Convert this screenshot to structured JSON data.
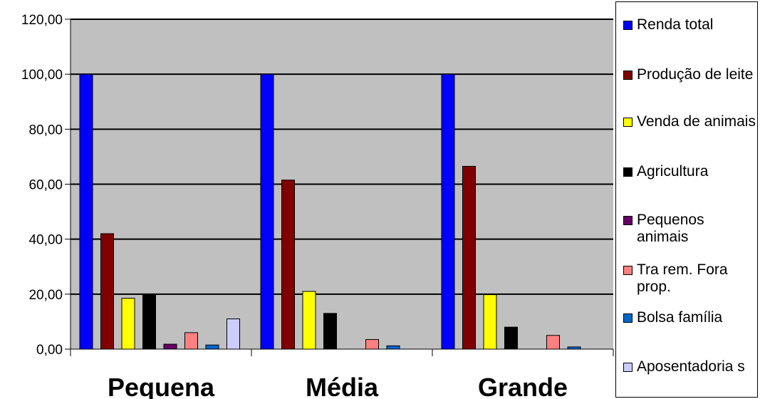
{
  "chart_data": {
    "type": "bar",
    "categories": [
      "Pequena",
      "Média",
      "Grande"
    ],
    "series": [
      {
        "name": "Renda total",
        "color": "#0000FF",
        "values": [
          100.0,
          100.0,
          100.0
        ]
      },
      {
        "name": "Produção de leite",
        "color": "#800000",
        "values": [
          42.0,
          61.5,
          66.5
        ]
      },
      {
        "name": "Venda de animais",
        "color": "#FFFF00",
        "values": [
          18.5,
          21.0,
          19.8
        ]
      },
      {
        "name": "Agricultura",
        "color": "#000000",
        "values": [
          20.0,
          13.0,
          8.0
        ]
      },
      {
        "name": "Pequenos animais",
        "color": "#660066",
        "values": [
          1.8,
          0.0,
          0.0
        ]
      },
      {
        "name": "Tra rem. Fora prop.",
        "color": "#FF8080",
        "values": [
          6.0,
          3.5,
          5.0
        ]
      },
      {
        "name": "Bolsa família",
        "color": "#0066CC",
        "values": [
          1.5,
          1.2,
          0.8
        ]
      },
      {
        "name": "Aposentadorias",
        "color": "#CCCCFF",
        "values": [
          11.0,
          0.0,
          0.0
        ]
      }
    ],
    "yticks": [
      "0,00",
      "20,00",
      "40,00",
      "60,00",
      "80,00",
      "100,00",
      "120,00"
    ],
    "ylim": [
      0,
      120
    ],
    "ytick_step": 20,
    "grid": true,
    "plot_background": "#C0C0C0",
    "legend_position": "right"
  },
  "legend_items": [
    {
      "label": "Renda total"
    },
    {
      "label": "Produção de leite"
    },
    {
      "label": "Venda de animais"
    },
    {
      "label": "Agricultura"
    },
    {
      "label": "Pequenos animais"
    },
    {
      "label": "Tra rem. Fora prop."
    },
    {
      "label": "Bolsa família"
    },
    {
      "label": "Aposentadoria s"
    }
  ]
}
